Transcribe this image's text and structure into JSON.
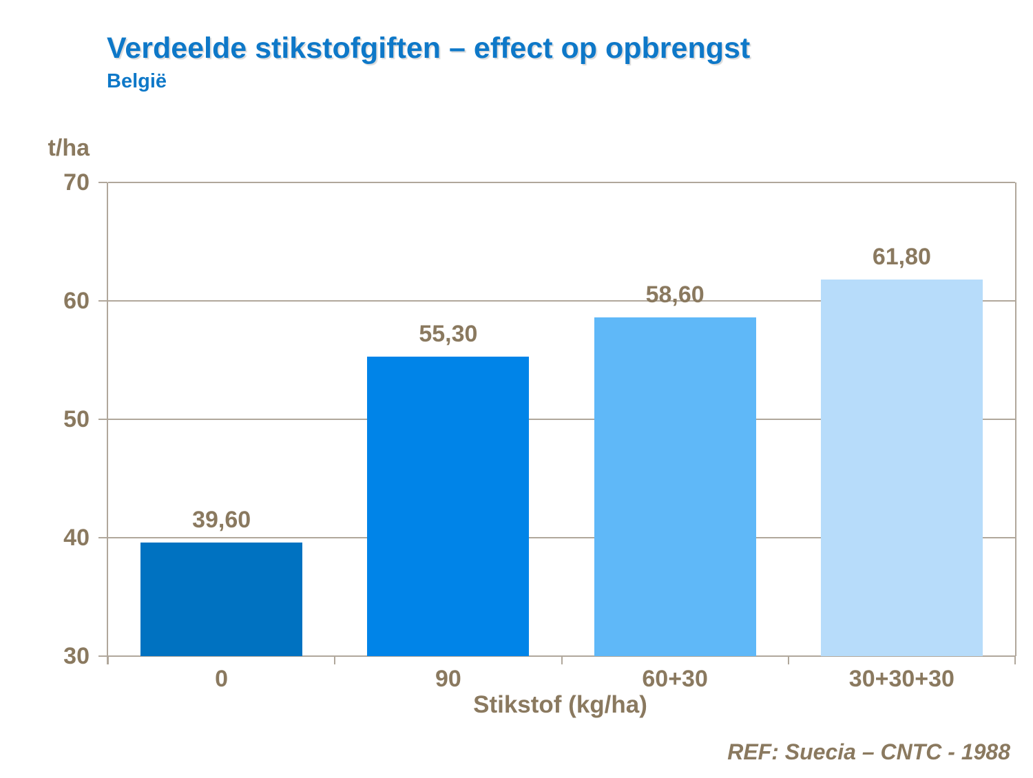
{
  "header": {
    "title": "Verdeelde stikstofgiften – effect op opbrengst",
    "subtitle": "België"
  },
  "chart_data": {
    "type": "bar",
    "categories": [
      "0",
      "90",
      "60+30",
      "30+30+30"
    ],
    "values": [
      39.6,
      55.3,
      58.6,
      61.8
    ],
    "value_labels": [
      "39,60",
      "55,30",
      "58,60",
      "61,80"
    ],
    "title": "Verdeelde stikstofgiften – effect op opbrengst",
    "xlabel": "Stikstof (kg/ha)",
    "ylabel": "t/ha",
    "ylim": [
      30,
      70
    ],
    "yticks": [
      70,
      60,
      50,
      40,
      30
    ],
    "grid": true,
    "legend": false,
    "bar_colors": [
      "#0072C1",
      "#0084E8",
      "#5FB8F8",
      "#B7DCFA"
    ]
  },
  "footer": {
    "ref": "REF: Suecia – CNTC - 1988"
  },
  "colors": {
    "background": "#FFFFFF",
    "title_blue": "#0E78C8",
    "label_brown": "#8A795F",
    "grid_line": "#B0A79B"
  }
}
